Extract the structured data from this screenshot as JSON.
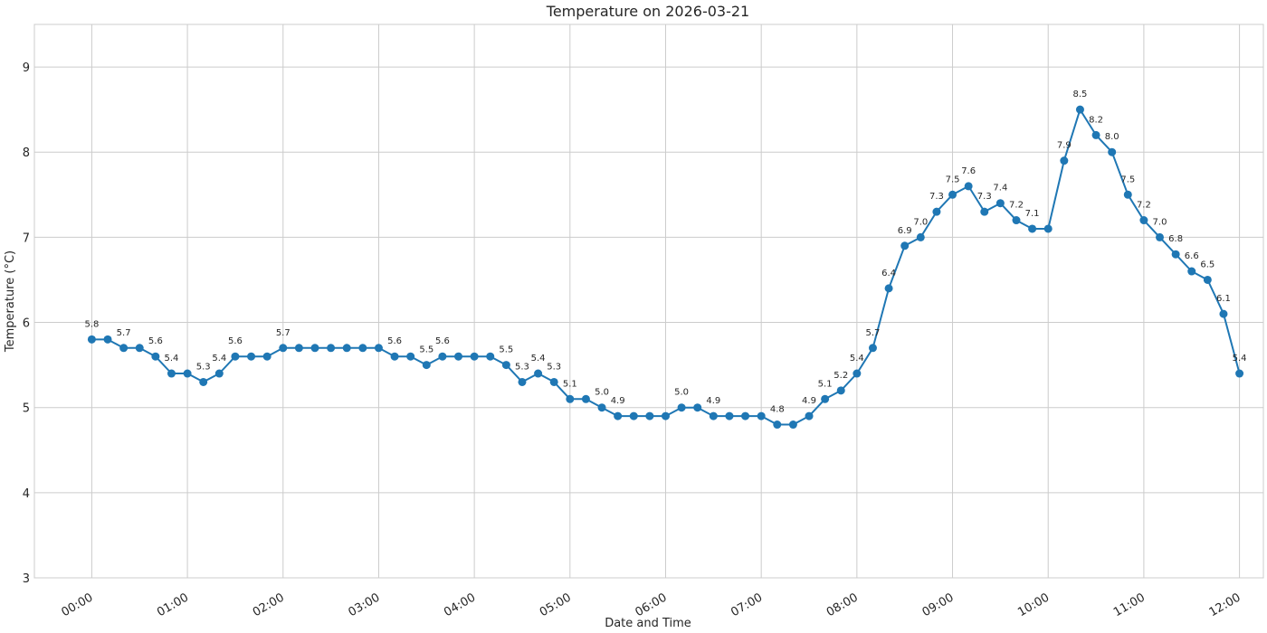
{
  "chart_data": {
    "type": "line",
    "title": "Temperature on 2026-03-21",
    "xlabel": "Date and Time",
    "ylabel": "Temperature (°C)",
    "ylim": [
      3,
      9.5
    ],
    "xlim": [
      "23:24",
      "12:15"
    ],
    "y_ticks": [
      3,
      4,
      5,
      6,
      7,
      8,
      9
    ],
    "x_ticks": [
      "00:00",
      "01:00",
      "02:00",
      "03:00",
      "04:00",
      "05:00",
      "06:00",
      "07:00",
      "08:00",
      "09:00",
      "10:00",
      "11:00",
      "12:00"
    ],
    "grid": true,
    "color": "#1f77b4",
    "x": [
      "00:00",
      "00:10",
      "00:20",
      "00:30",
      "00:40",
      "00:50",
      "01:00",
      "01:10",
      "01:20",
      "01:30",
      "01:40",
      "01:50",
      "02:00",
      "02:10",
      "02:20",
      "02:30",
      "02:40",
      "02:50",
      "03:00",
      "03:10",
      "03:20",
      "03:30",
      "03:40",
      "03:50",
      "04:00",
      "04:10",
      "04:20",
      "04:30",
      "04:40",
      "04:50",
      "05:00",
      "05:10",
      "05:20",
      "05:30",
      "05:40",
      "05:50",
      "06:00",
      "06:10",
      "06:20",
      "06:30",
      "06:40",
      "06:50",
      "07:00",
      "07:10",
      "07:20",
      "07:30",
      "07:40",
      "07:50",
      "08:00",
      "08:10",
      "08:20",
      "08:30",
      "08:40",
      "08:50",
      "09:00",
      "09:10",
      "09:20",
      "09:30",
      "09:40",
      "09:50",
      "10:00",
      "10:10",
      "10:20",
      "10:30",
      "10:40",
      "10:50",
      "11:00",
      "11:10",
      "11:20",
      "11:30",
      "11:40",
      "11:50",
      "12:00"
    ],
    "values": [
      5.8,
      5.8,
      5.7,
      5.7,
      5.6,
      5.4,
      5.4,
      5.3,
      5.4,
      5.6,
      5.6,
      5.6,
      5.7,
      5.7,
      5.7,
      5.7,
      5.7,
      5.7,
      5.7,
      5.6,
      5.6,
      5.5,
      5.6,
      5.6,
      5.6,
      5.6,
      5.5,
      5.3,
      5.4,
      5.3,
      5.1,
      5.1,
      5.0,
      4.9,
      4.9,
      4.9,
      4.9,
      5.0,
      5.0,
      4.9,
      4.9,
      4.9,
      4.9,
      4.8,
      4.8,
      4.9,
      5.1,
      5.2,
      5.4,
      5.7,
      6.4,
      6.9,
      7.0,
      7.3,
      7.5,
      7.6,
      7.3,
      7.4,
      7.2,
      7.1,
      7.1,
      7.9,
      8.5,
      8.2,
      8.0,
      7.5,
      7.2,
      7.0,
      6.8,
      6.6,
      6.5,
      6.1,
      5.4
    ],
    "data_labels": [
      {
        "x": "00:00",
        "text": "5.8"
      },
      {
        "x": "00:20",
        "text": "5.7"
      },
      {
        "x": "00:40",
        "text": "5.6"
      },
      {
        "x": "00:50",
        "text": "5.4"
      },
      {
        "x": "01:10",
        "text": "5.3"
      },
      {
        "x": "01:20",
        "text": "5.4"
      },
      {
        "x": "01:30",
        "text": "5.6"
      },
      {
        "x": "02:00",
        "text": "5.7"
      },
      {
        "x": "03:10",
        "text": "5.6"
      },
      {
        "x": "03:30",
        "text": "5.5"
      },
      {
        "x": "03:40",
        "text": "5.6"
      },
      {
        "x": "04:20",
        "text": "5.5"
      },
      {
        "x": "04:30",
        "text": "5.3"
      },
      {
        "x": "04:40",
        "text": "5.4"
      },
      {
        "x": "04:50",
        "text": "5.3"
      },
      {
        "x": "05:00",
        "text": "5.1"
      },
      {
        "x": "05:20",
        "text": "5.0"
      },
      {
        "x": "05:30",
        "text": "4.9"
      },
      {
        "x": "06:10",
        "text": "5.0"
      },
      {
        "x": "06:30",
        "text": "4.9"
      },
      {
        "x": "07:10",
        "text": "4.8"
      },
      {
        "x": "07:30",
        "text": "4.9"
      },
      {
        "x": "07:40",
        "text": "5.1"
      },
      {
        "x": "07:50",
        "text": "5.2"
      },
      {
        "x": "08:00",
        "text": "5.4"
      },
      {
        "x": "08:10",
        "text": "5.7"
      },
      {
        "x": "08:20",
        "text": "6.4"
      },
      {
        "x": "08:30",
        "text": "6.9"
      },
      {
        "x": "08:40",
        "text": "7.0"
      },
      {
        "x": "08:50",
        "text": "7.3"
      },
      {
        "x": "09:00",
        "text": "7.5"
      },
      {
        "x": "09:10",
        "text": "7.6"
      },
      {
        "x": "09:20",
        "text": "7.3"
      },
      {
        "x": "09:30",
        "text": "7.4"
      },
      {
        "x": "09:40",
        "text": "7.2"
      },
      {
        "x": "09:50",
        "text": "7.1"
      },
      {
        "x": "10:10",
        "text": "7.9"
      },
      {
        "x": "10:20",
        "text": "8.5"
      },
      {
        "x": "10:30",
        "text": "8.2"
      },
      {
        "x": "10:40",
        "text": "8.0"
      },
      {
        "x": "10:50",
        "text": "7.5"
      },
      {
        "x": "11:00",
        "text": "7.2"
      },
      {
        "x": "11:10",
        "text": "7.0"
      },
      {
        "x": "11:20",
        "text": "6.8"
      },
      {
        "x": "11:30",
        "text": "6.6"
      },
      {
        "x": "11:40",
        "text": "6.5"
      },
      {
        "x": "11:50",
        "text": "6.1"
      },
      {
        "x": "12:00",
        "text": "5.4"
      }
    ]
  }
}
